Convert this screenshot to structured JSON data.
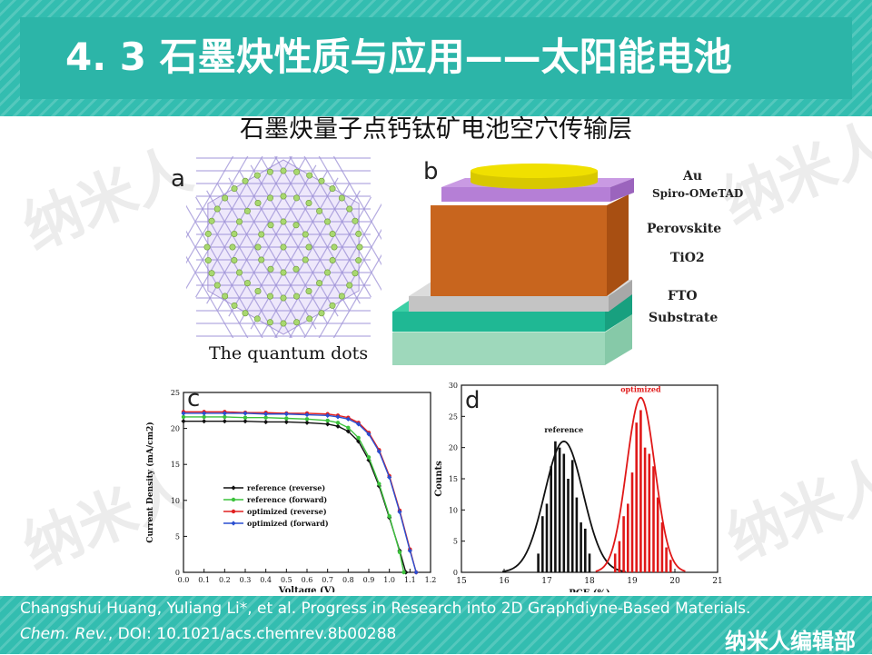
{
  "header": {
    "title": "4. 3  石墨炔性质与应用——太阳能电池"
  },
  "subtitle": "石墨炔量子点钙钛矿电池空穴传输层",
  "watermark": "纳米人",
  "panel_a": {
    "tag": "a",
    "caption": "The quantum dots"
  },
  "panel_b": {
    "tag": "b",
    "layers": [
      {
        "name": "Au",
        "color": "#e6d800"
      },
      {
        "name": "Spiro-OMeTAD",
        "color": "#b57fd6"
      },
      {
        "name": "Perovskite",
        "color": "#c8651e"
      },
      {
        "name": "TiO2",
        "color": "#c8c8c8"
      },
      {
        "name": "FTO",
        "color": "#1fb894"
      },
      {
        "name": "Substrate",
        "color": "#a8e0c4"
      }
    ]
  },
  "panel_c": {
    "tag": "c"
  },
  "panel_d": {
    "tag": "d"
  },
  "chart_data": [
    {
      "type": "line",
      "xlabel": "Voltage (V)",
      "ylabel": "Current Density (mA/cm2)",
      "xlim": [
        0.0,
        1.2
      ],
      "ylim": [
        0,
        25
      ],
      "xticks": [
        "0.0",
        "0.1",
        "0.2",
        "0.3",
        "0.4",
        "0.5",
        "0.6",
        "0.7",
        "0.8",
        "0.9",
        "1.0",
        "1.1",
        "1.2"
      ],
      "yticks": [
        "0",
        "5",
        "10",
        "15",
        "20",
        "25"
      ],
      "legend_position": "center-left",
      "series": [
        {
          "name": "reference (reverse)",
          "color": "#111111",
          "marker": "diamond",
          "voc": 1.08,
          "x": [
            0,
            0.1,
            0.2,
            0.3,
            0.4,
            0.5,
            0.6,
            0.7,
            0.75,
            0.8,
            0.85,
            0.9,
            0.95,
            1.0,
            1.05,
            1.08
          ],
          "y": [
            21.0,
            21.0,
            21.0,
            21.0,
            20.9,
            20.9,
            20.8,
            20.6,
            20.3,
            19.6,
            18.2,
            15.6,
            12.0,
            7.6,
            3.0,
            0.0
          ]
        },
        {
          "name": "reference (forward)",
          "color": "#3cc23c",
          "marker": "circle",
          "voc": 1.07,
          "x": [
            0,
            0.1,
            0.2,
            0.3,
            0.4,
            0.5,
            0.6,
            0.7,
            0.75,
            0.8,
            0.85,
            0.9,
            0.95,
            1.0,
            1.05,
            1.07
          ],
          "y": [
            21.6,
            21.6,
            21.6,
            21.5,
            21.5,
            21.4,
            21.3,
            21.1,
            20.8,
            20.1,
            18.7,
            16.0,
            12.3,
            7.8,
            2.8,
            0.0
          ]
        },
        {
          "name": "optimized (reverse)",
          "color": "#e02020",
          "marker": "circle",
          "voc": 1.13,
          "x": [
            0,
            0.1,
            0.2,
            0.3,
            0.4,
            0.5,
            0.6,
            0.7,
            0.75,
            0.8,
            0.85,
            0.9,
            0.95,
            1.0,
            1.05,
            1.1,
            1.13
          ],
          "y": [
            22.3,
            22.3,
            22.3,
            22.2,
            22.2,
            22.1,
            22.1,
            22.0,
            21.8,
            21.5,
            20.8,
            19.4,
            17.0,
            13.4,
            8.6,
            3.2,
            0.0
          ]
        },
        {
          "name": "optimized (forward)",
          "color": "#2a4fd0",
          "marker": "diamond",
          "voc": 1.13,
          "x": [
            0,
            0.1,
            0.2,
            0.3,
            0.4,
            0.5,
            0.6,
            0.7,
            0.75,
            0.8,
            0.85,
            0.9,
            0.95,
            1.0,
            1.05,
            1.1,
            1.13
          ],
          "y": [
            22.1,
            22.1,
            22.1,
            22.1,
            22.0,
            22.0,
            21.9,
            21.8,
            21.6,
            21.3,
            20.6,
            19.2,
            16.8,
            13.2,
            8.4,
            3.0,
            0.0
          ]
        }
      ]
    },
    {
      "type": "bar",
      "xlabel": "PCE (%)",
      "ylabel": "Counts",
      "xlim": [
        15,
        21
      ],
      "ylim": [
        0,
        30
      ],
      "xticks": [
        "15",
        "16",
        "17",
        "18",
        "19",
        "20",
        "21"
      ],
      "yticks": [
        "0",
        "5",
        "10",
        "15",
        "20",
        "25",
        "30"
      ],
      "series": [
        {
          "name": "reference",
          "color": "#111111",
          "x": [
            16.8,
            16.9,
            17.0,
            17.1,
            17.2,
            17.3,
            17.4,
            17.5,
            17.6,
            17.7,
            17.8,
            17.9,
            18.0
          ],
          "values": [
            3,
            9,
            11,
            17,
            21,
            20,
            19,
            15,
            18,
            12,
            8,
            7,
            3
          ],
          "fit_mean": 17.4,
          "fit_sigma": 0.45,
          "fit_peak": 21
        },
        {
          "name": "optimized",
          "color": "#e01818",
          "x": [
            18.6,
            18.7,
            18.8,
            18.9,
            19.0,
            19.1,
            19.2,
            19.3,
            19.4,
            19.5,
            19.6,
            19.7,
            19.8,
            19.9
          ],
          "values": [
            3,
            5,
            9,
            11,
            16,
            24,
            26,
            20,
            19,
            17,
            12,
            8,
            4,
            2
          ],
          "fit_mean": 19.2,
          "fit_sigma": 0.33,
          "fit_peak": 28
        }
      ]
    }
  ],
  "footer": {
    "citation_text": "Changshui Huang, Yuliang Li*, et al. Progress in Research into 2D Graphdiyne-Based Materials.",
    "journal": "Chem. Rev.",
    "doi_text": ", DOI: 10.1021/acs.chemrev.8b00288",
    "brand": "纳米人编辑部"
  }
}
